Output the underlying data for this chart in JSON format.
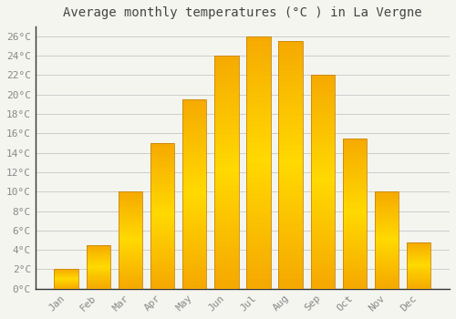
{
  "title": "Average monthly temperatures (°C ) in La Vergne",
  "months": [
    "Jan",
    "Feb",
    "Mar",
    "Apr",
    "May",
    "Jun",
    "Jul",
    "Aug",
    "Sep",
    "Oct",
    "Nov",
    "Dec"
  ],
  "values": [
    2.0,
    4.5,
    10.0,
    15.0,
    19.5,
    24.0,
    26.0,
    25.5,
    22.0,
    15.5,
    10.0,
    4.8
  ],
  "bar_color_bottom": "#F5A800",
  "bar_color_top": "#FFD966",
  "bar_edge_color": "#C8860A",
  "background_color": "#F5F5F0",
  "plot_bg_color": "#F5F5F0",
  "grid_color": "#CCCCCC",
  "tick_label_color": "#888888",
  "title_color": "#444444",
  "left_spine_color": "#333333",
  "bottom_spine_color": "#333333",
  "ylim": [
    0,
    27
  ],
  "yticks": [
    0,
    2,
    4,
    6,
    8,
    10,
    12,
    14,
    16,
    18,
    20,
    22,
    24,
    26
  ],
  "title_fontsize": 10,
  "tick_fontsize": 8,
  "figsize": [
    5.0,
    3.5
  ],
  "dpi": 100
}
